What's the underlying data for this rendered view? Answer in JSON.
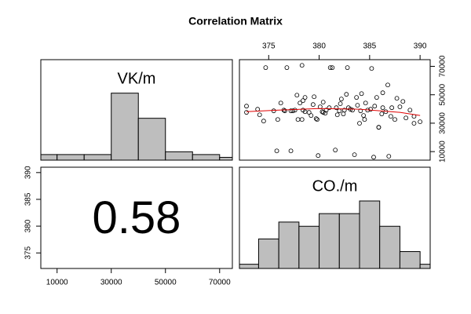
{
  "title": "Correlation Matrix",
  "chart_data": [
    {
      "type": "histogram",
      "label": "VK/m",
      "bins": [
        0,
        10000,
        20000,
        30000,
        40000,
        50000,
        60000,
        70000,
        80000
      ],
      "counts": [
        2,
        2,
        2,
        24,
        15,
        3,
        2,
        1
      ],
      "xlim": [
        4000,
        74700
      ],
      "ylim": [
        0,
        36
      ],
      "color": "#bebebe"
    },
    {
      "type": "scatter",
      "x": [
        372.8,
        372.8,
        373.9,
        374.1,
        374.5,
        374.7,
        375.5,
        375.8,
        375.9,
        376.2,
        376.5,
        376.6,
        376.8,
        377.2,
        377.2,
        377.4,
        377.6,
        377.8,
        377.9,
        378.1,
        378.3,
        378.3,
        378.4,
        378.4,
        378.6,
        378.6,
        379.0,
        379.2,
        379.4,
        379.5,
        379.7,
        379.8,
        379.9,
        380.1,
        380.3,
        380.4,
        380.4,
        380.6,
        380.7,
        381.0,
        381.1,
        381.3,
        381.6,
        381.7,
        381.8,
        382.0,
        382.1,
        382.2,
        382.4,
        382.5,
        382.7,
        382.8,
        382.9,
        383.1,
        383.3,
        383.5,
        383.7,
        383.8,
        384.0,
        384.1,
        384.2,
        384.4,
        384.5,
        384.6,
        384.8,
        385.1,
        385.2,
        385.4,
        385.5,
        385.7,
        385.9,
        385.9,
        386.2,
        386.3,
        386.3,
        386.6,
        386.8,
        386.9,
        387.1,
        387.2,
        387.5,
        387.7,
        388.0,
        388.3,
        388.6,
        389.0,
        389.4,
        389.4,
        390.0
      ],
      "y": [
        42000,
        37600,
        39800,
        35900,
        31500,
        69100,
        38700,
        10500,
        32600,
        44200,
        39200,
        38700,
        69100,
        10500,
        38700,
        38700,
        39200,
        49700,
        32600,
        44200,
        70700,
        32600,
        45900,
        39200,
        48100,
        38100,
        37600,
        35400,
        43100,
        48600,
        33200,
        32600,
        7200,
        41500,
        38100,
        44800,
        37600,
        37000,
        39200,
        40900,
        69100,
        69100,
        11100,
        40900,
        35900,
        38700,
        43700,
        47000,
        36500,
        39200,
        50300,
        69100,
        40900,
        39800,
        39200,
        7800,
        48100,
        42600,
        29900,
        38700,
        50800,
        35400,
        32600,
        44200,
        39200,
        39800,
        68500,
        6100,
        42000,
        48100,
        27100,
        27100,
        36500,
        51400,
        40900,
        38100,
        56900,
        6700,
        34800,
        40900,
        32600,
        47500,
        41500,
        45300,
        33700,
        39200,
        29900,
        34800,
        31000
      ],
      "smooth": {
        "x": [
          372.8,
          376,
          380,
          384,
          388,
          390
        ],
        "y": [
          38100,
          39200,
          40300,
          39800,
          37600,
          35400
        ],
        "color": "#e00000"
      },
      "xlim": [
        372.1,
        391
      ],
      "xticks": [
        375,
        380,
        385,
        390
      ],
      "ylim": [
        4000,
        74700
      ],
      "yticks": [
        10000,
        30000,
        50000,
        70000
      ]
    },
    {
      "type": "text",
      "value": 0.58,
      "xlim": [
        4000,
        74700
      ],
      "xticks": [
        10000,
        30000,
        50000,
        70000
      ],
      "ylim": [
        372.1,
        391
      ],
      "yticks": [
        375,
        380,
        385,
        390
      ]
    },
    {
      "type": "histogram",
      "label": "CO./m",
      "bins": [
        372,
        374,
        376,
        378,
        380,
        382,
        384,
        386,
        388,
        390,
        392
      ],
      "counts": [
        1,
        7,
        11,
        10,
        13,
        13,
        16,
        10,
        4,
        1
      ],
      "xlim": [
        372.1,
        391
      ],
      "ylim": [
        0,
        24
      ],
      "color": "#bebebe"
    }
  ]
}
